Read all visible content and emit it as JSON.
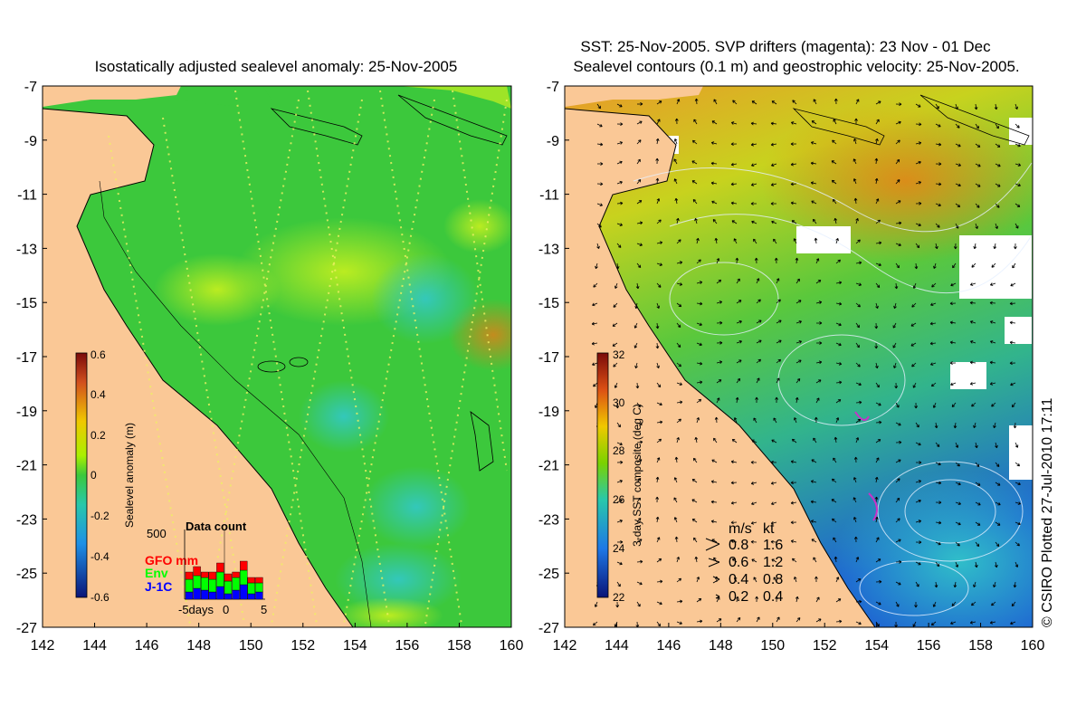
{
  "left_panel": {
    "title": "Isostatically adjusted sealevel anomaly: 25-Nov-2005",
    "colorbar": {
      "label": "Sealevel anomaly (m)",
      "ticks": [
        "0.6",
        "0.4",
        "0.2",
        "0",
        "-0.2",
        "-0.4",
        "-0.6"
      ],
      "range": [
        -0.6,
        0.6
      ]
    },
    "data_count": {
      "title": "Data count",
      "ymax_label": "500",
      "series": [
        {
          "label": "GFO mm",
          "color": "#ff0000"
        },
        {
          "label": "Env",
          "color": "#00ff00"
        },
        {
          "label": "J-1C",
          "color": "#0000ff"
        }
      ],
      "x_left": "-5days",
      "x_mid": "0",
      "x_right": "5"
    }
  },
  "right_panel": {
    "title_line1": "SST: 25-Nov-2005. SVP drifters (magenta): 23 Nov - 01 Dec",
    "title_line2": "Sealevel contours (0.1 m) and geostrophic velocity: 25-Nov-2005.",
    "colorbar": {
      "label": "3-day SST composite (deg C)",
      "ticks": [
        "32",
        "30",
        "28",
        "26",
        "24",
        "22"
      ],
      "range": [
        22,
        32
      ]
    },
    "velocity_legend": {
      "header_ms": "m/s",
      "header_kt": "kt",
      "rows": [
        {
          "ms": "0.8",
          "kt": "1.6"
        },
        {
          "ms": "0.6",
          "kt": "1.2"
        },
        {
          "ms": "0.4",
          "kt": "0.8"
        },
        {
          "ms": "0.2",
          "kt": "0.4"
        }
      ]
    }
  },
  "axes": {
    "lat_ticks": [
      "-7",
      "-9",
      "-11",
      "-13",
      "-15",
      "-17",
      "-19",
      "-21",
      "-23",
      "-25",
      "-27"
    ],
    "lon_ticks": [
      "142",
      "144",
      "146",
      "148",
      "150",
      "152",
      "154",
      "156",
      "158",
      "160"
    ]
  },
  "credit": "© CSIRO Plotted 27-Jul-2010 17:11",
  "colors": {
    "land": "#fac896",
    "sla_base": "#3cc83c",
    "sst_warm": "#f0a028",
    "sst_cool": "#1e78d2"
  }
}
